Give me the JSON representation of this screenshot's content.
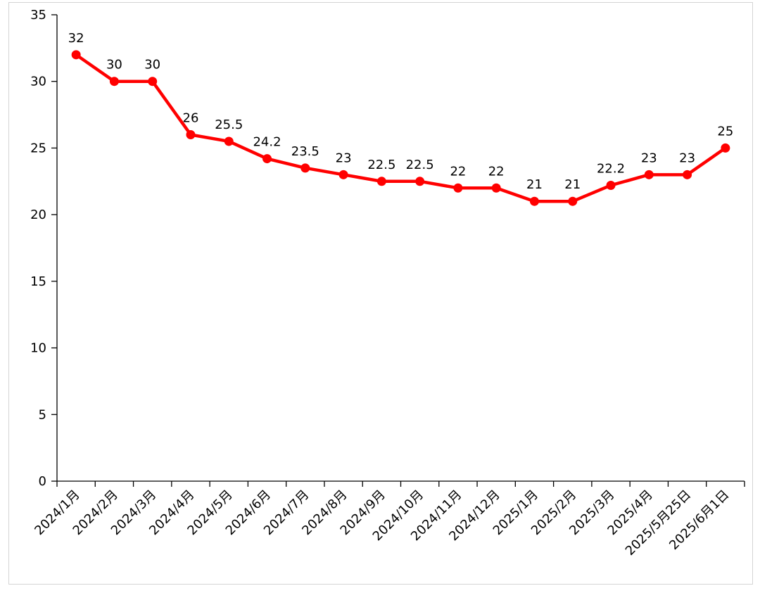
{
  "chart_data": {
    "type": "line",
    "title": "",
    "xlabel": "",
    "ylabel": "",
    "categories": [
      "2024/1月",
      "2024/2月",
      "2024/3月",
      "2024/4月",
      "2024/5月",
      "2024/6月",
      "2024/7月",
      "2024/8月",
      "2024/9月",
      "2024/10月",
      "2024/11月",
      "2024/12月",
      "2025/1月",
      "2025/2月",
      "2025/3月",
      "2025/4月",
      "2025/5月25日",
      "2025/6月1日"
    ],
    "values": [
      32,
      30,
      30,
      26,
      25.5,
      24.2,
      23.5,
      23,
      22.5,
      22.5,
      22,
      22,
      21,
      21,
      22.2,
      23,
      23,
      25
    ],
    "data_labels": [
      "32",
      "30",
      "30",
      "26",
      "25.5",
      "24.2",
      "23.5",
      "23",
      "22.5",
      "22.5",
      "22",
      "22",
      "21",
      "21",
      "22.2",
      "23",
      "23",
      "25"
    ],
    "ylim": [
      0,
      35
    ],
    "yticks": [
      "0",
      "5",
      "10",
      "15",
      "20",
      "25",
      "30",
      "35"
    ],
    "grid": false,
    "legend": "none",
    "line_color": "#ff0000"
  }
}
